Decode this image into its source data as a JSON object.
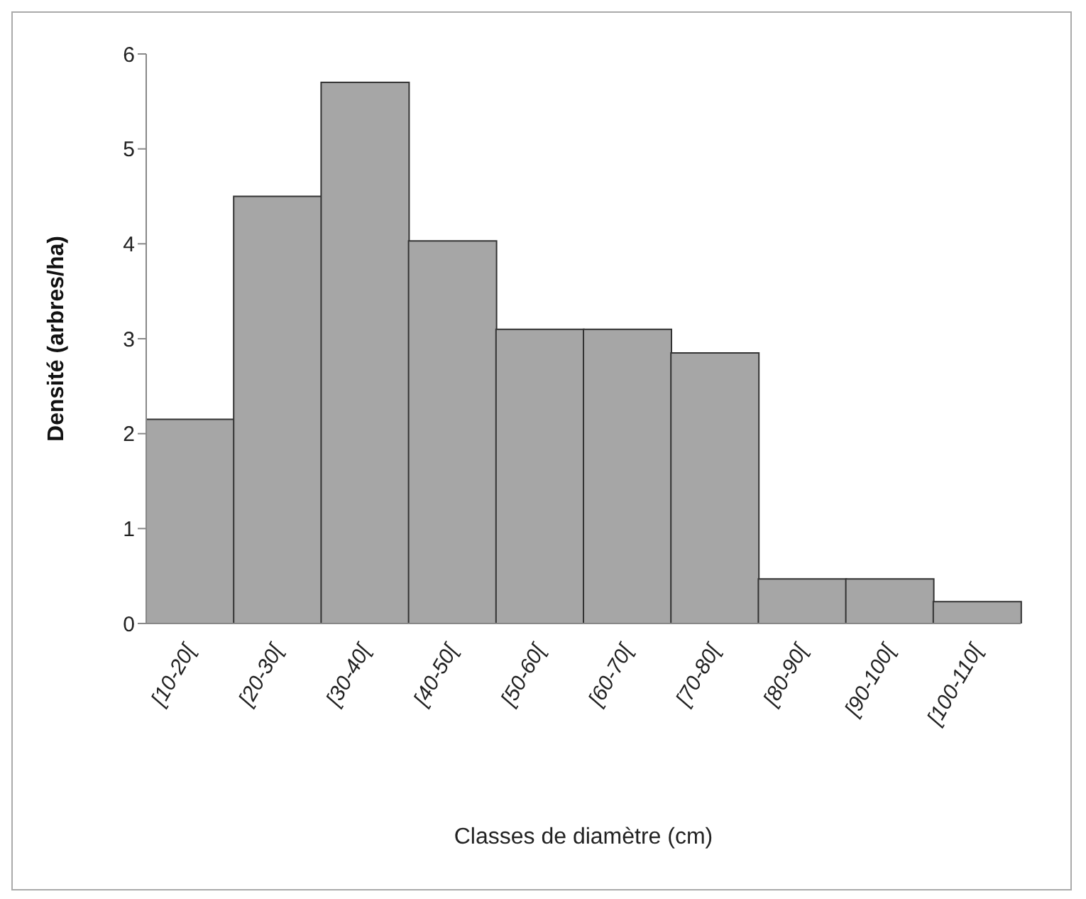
{
  "chart_data": {
    "type": "bar",
    "xlabel": "Classes de diamètre (cm)",
    "ylabel": "Densité (arbres/ha)",
    "categories": [
      "[10-20[",
      "[20-30[",
      "[30-40[",
      "[40-50[",
      "[50-60[",
      "[60-70[",
      "[70-80[",
      "[80-90[",
      "[90-100[",
      "[100-110["
    ],
    "values": [
      2.15,
      4.5,
      5.7,
      4.03,
      3.1,
      3.1,
      2.85,
      0.47,
      0.47,
      0.23
    ],
    "color": "#a6a6a6",
    "ylim": [
      0,
      6
    ],
    "yticks": [
      0,
      1,
      2,
      3,
      4,
      5,
      6
    ]
  }
}
